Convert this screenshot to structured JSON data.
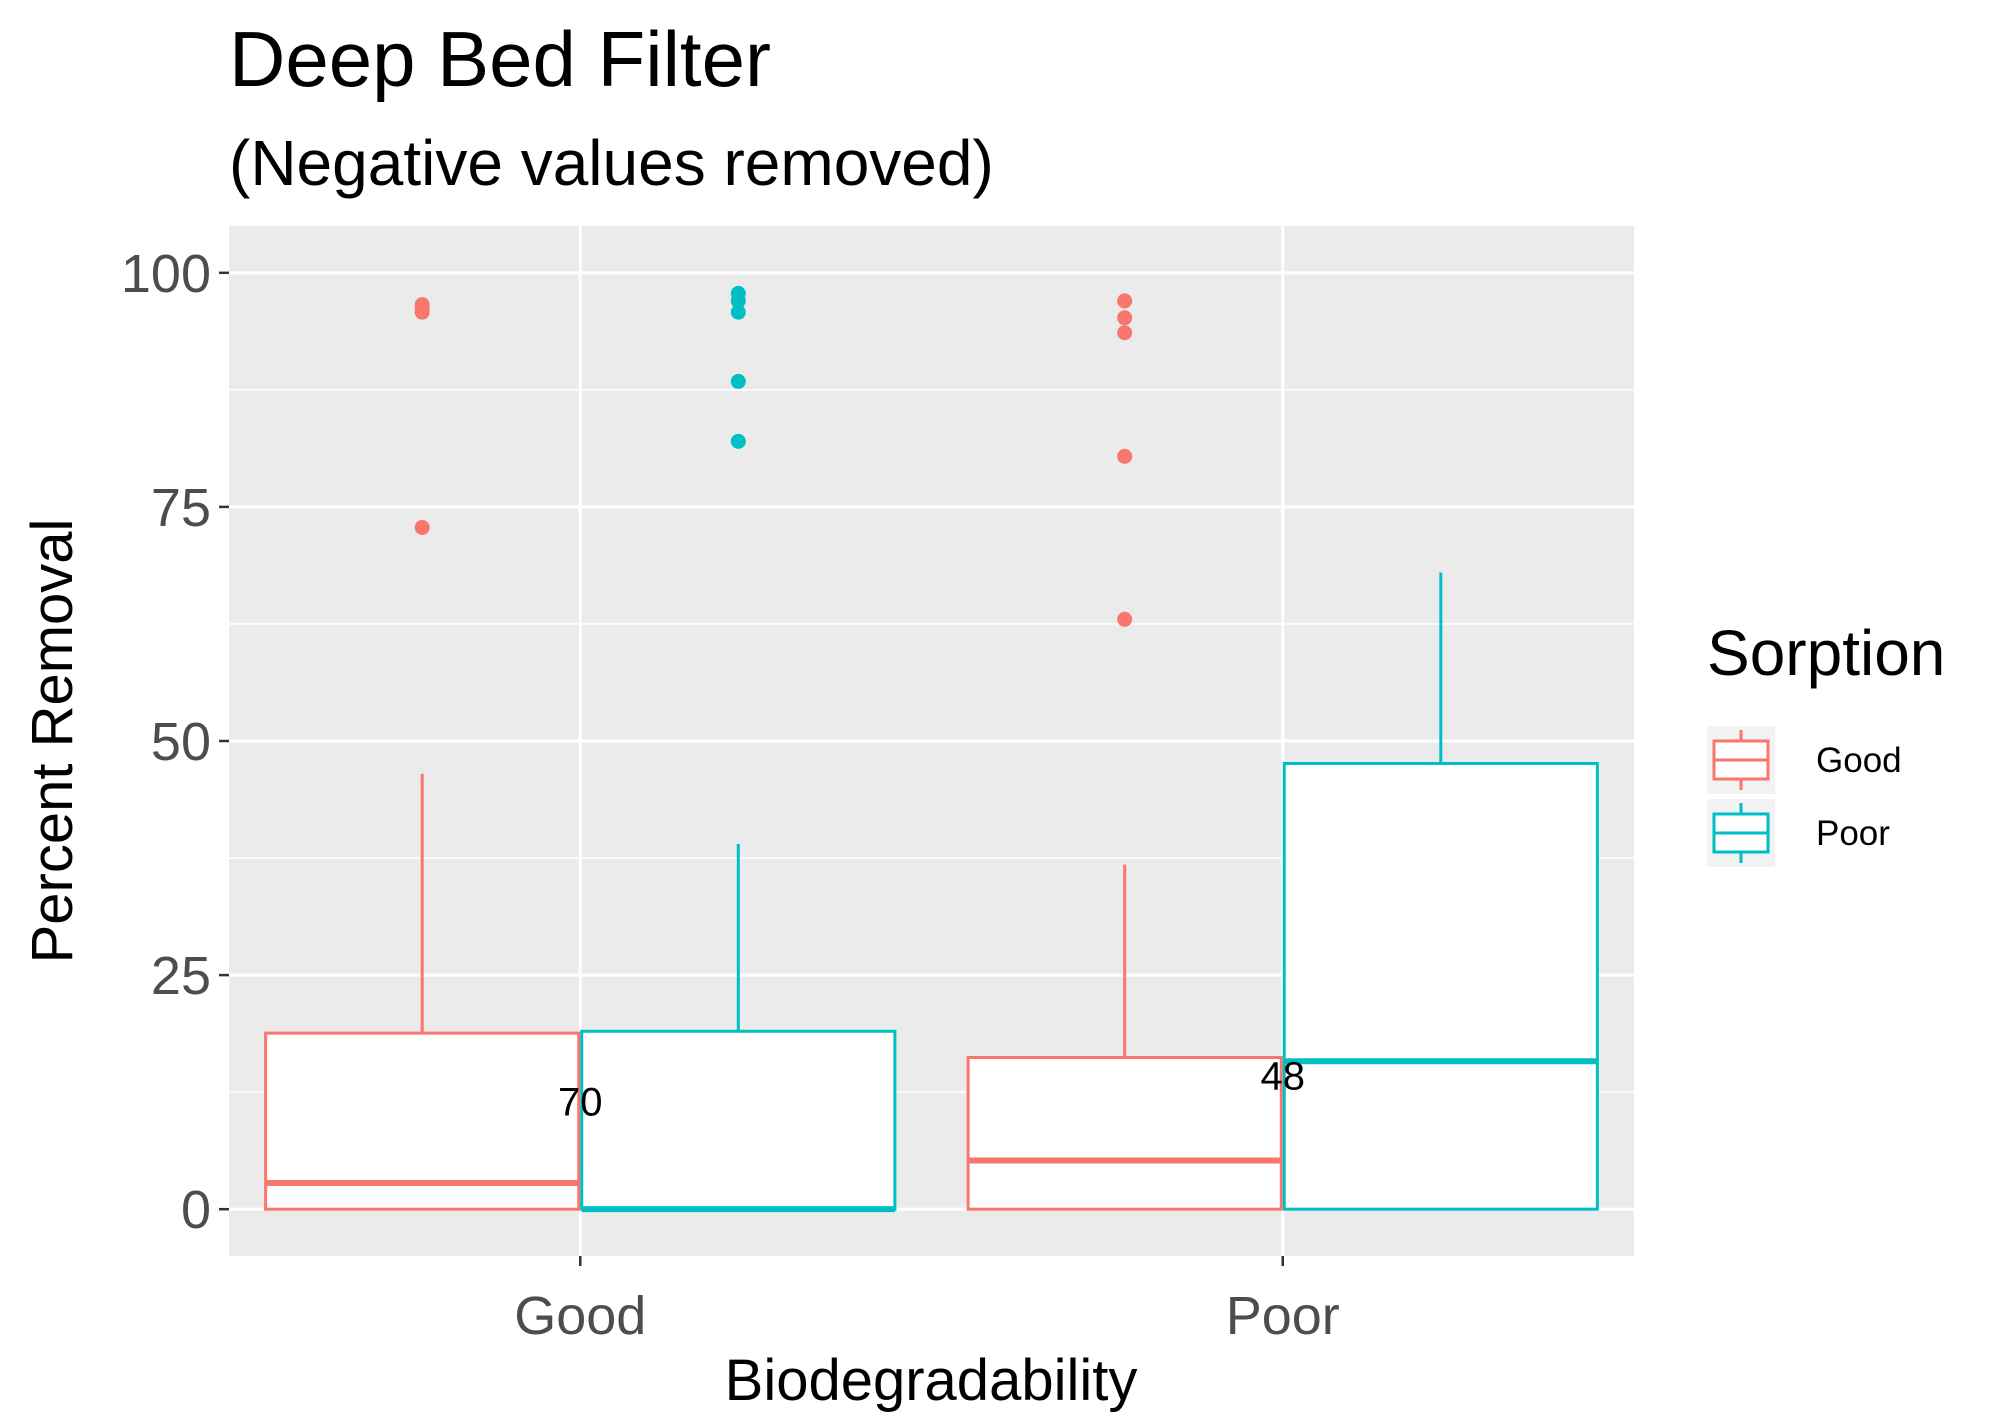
{
  "chart_data": {
    "type": "box",
    "title": "Deep Bed Filter",
    "subtitle": "(Negative values removed)",
    "xlabel": "Biodegradability",
    "ylabel": "Percent Removal",
    "categories": [
      "Good",
      "Poor"
    ],
    "ylim": [
      -5,
      105
    ],
    "yticks": [
      0,
      25,
      50,
      75,
      100
    ],
    "grid": true,
    "legend": {
      "title": "Sorption",
      "position": "right",
      "entries": [
        "Good",
        "Poor"
      ]
    },
    "series": [
      {
        "name": "Good",
        "color": "#F8766D",
        "boxes": [
          {
            "category": "Good",
            "min": 0,
            "q1": 0,
            "median": 2.8,
            "q3": 18.8,
            "max": 46.5,
            "outliers": [
              72.8,
              95.8,
              96.2,
              96.6
            ]
          },
          {
            "category": "Poor",
            "min": 0,
            "q1": 0,
            "median": 5.2,
            "q3": 16.2,
            "max": 36.8,
            "outliers": [
              63.0,
              80.4,
              93.6,
              95.2,
              97.0
            ]
          }
        ]
      },
      {
        "name": "Poor",
        "color": "#00BFC4",
        "boxes": [
          {
            "category": "Good",
            "min": 0,
            "q1": 0,
            "median": 0,
            "q3": 19.0,
            "max": 39.0,
            "outliers": [
              82.0,
              88.4,
              95.8,
              97.0,
              97.8
            ]
          },
          {
            "category": "Poor",
            "min": 0,
            "q1": 0,
            "median": 15.8,
            "q3": 47.6,
            "max": 68.0,
            "outliers": []
          }
        ]
      }
    ],
    "annotations": [
      {
        "text": "70",
        "category": "Good",
        "y": 11.5
      },
      {
        "text": "48",
        "category": "Poor",
        "y": 14.3
      }
    ]
  }
}
